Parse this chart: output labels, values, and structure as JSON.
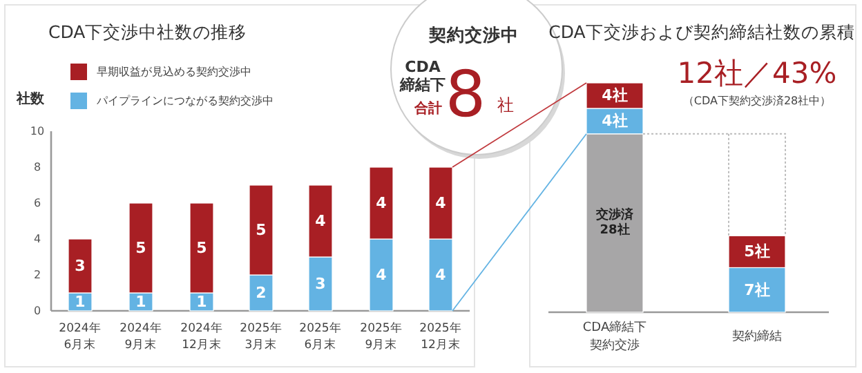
{
  "chart_data": [
    {
      "type": "bar",
      "title": "CDA下交渉中社数の推移",
      "ylabel": "社数",
      "stacked": true,
      "data_labels": true,
      "legend": "top left",
      "ylim": [
        0,
        10
      ],
      "yticks": [
        0,
        2,
        4,
        6,
        8,
        10
      ],
      "categories": [
        "2024年6月末",
        "2024年9月末",
        "2024年12月末",
        "2025年3月末",
        "2025年6月末",
        "2025年9月末",
        "2025年12月末"
      ],
      "series": [
        {
          "name": "パイプラインにつながる契約交渉中",
          "color": "#63b3e3",
          "values": [
            1,
            1,
            1,
            2,
            3,
            4,
            4
          ]
        },
        {
          "name": "早期収益が見込める契約交渉中",
          "color": "#a81f24",
          "values": [
            3,
            5,
            5,
            5,
            4,
            4,
            4
          ]
        }
      ]
    },
    {
      "type": "other",
      "title": "契約交渉中",
      "annotations": [
        "CDA締結下",
        "合計",
        "8",
        "社"
      ]
    },
    {
      "type": "bar",
      "title": "CDA下交渉および契約締結社数の累積",
      "stacked": true,
      "annotations": [
        "12社／43%",
        "（CDA下契約交渉済28社中）"
      ],
      "categories": [
        "CDA締結下契約交渉",
        "契約締結"
      ],
      "series": [
        {
          "color": "#a7a6a7",
          "values": [
            28,
            null
          ],
          "value_labels": [
            "交渉済28社",
            null
          ]
        },
        {
          "color": "#63b3e3",
          "values": [
            4,
            7
          ],
          "value_labels": [
            "4社",
            "7社"
          ]
        },
        {
          "color": "#a81f24",
          "values": [
            4,
            5
          ],
          "value_labels": [
            "4社",
            "5社"
          ]
        }
      ]
    }
  ]
}
